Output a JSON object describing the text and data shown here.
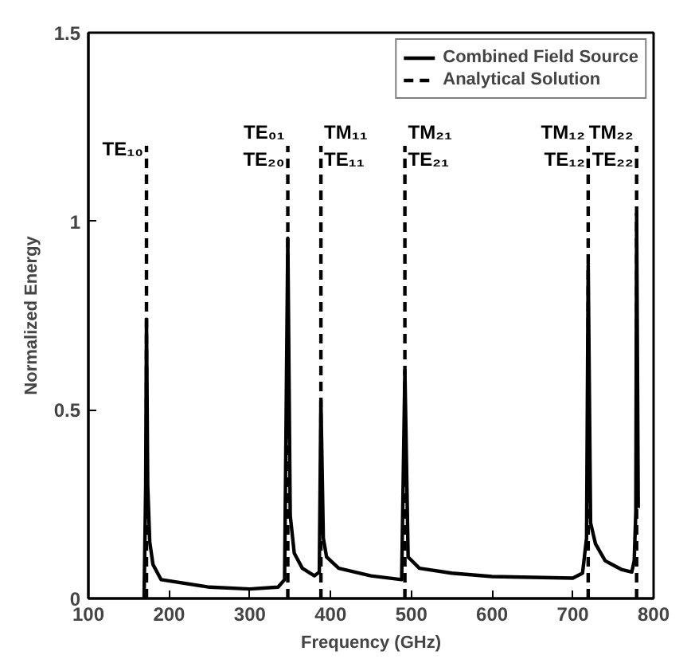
{
  "chart_data": {
    "type": "line",
    "xlabel": "Frequency (GHz)",
    "ylabel": "Normalized Energy",
    "xlim": [
      100,
      800
    ],
    "xticks": [
      100,
      200,
      300,
      400,
      500,
      600,
      700,
      800
    ],
    "ylim": [
      0,
      1.5
    ],
    "yticks": [
      0,
      0.5,
      1,
      1.5
    ],
    "grid": false,
    "legend": "top right",
    "series": [
      {
        "name": "Combined Field Source",
        "color": "#000000",
        "line_style": "solid",
        "x": [
          169,
          171,
          172,
          173.5,
          176,
          180,
          190,
          250,
          300,
          335,
          343,
          347,
          350,
          355,
          365,
          380,
          386,
          388,
          391,
          395,
          410,
          450,
          488,
          492,
          496,
          510,
          550,
          600,
          700,
          712,
          717,
          719,
          722,
          728,
          740,
          760,
          773,
          776,
          778,
          779,
          781
        ],
        "values": [
          0,
          0.3,
          0.74,
          0.3,
          0.15,
          0.09,
          0.05,
          0.03,
          0.025,
          0.03,
          0.05,
          0.955,
          0.22,
          0.12,
          0.08,
          0.06,
          0.07,
          0.525,
          0.16,
          0.11,
          0.08,
          0.06,
          0.05,
          0.605,
          0.11,
          0.08,
          0.067,
          0.058,
          0.054,
          0.067,
          0.16,
          0.885,
          0.2,
          0.145,
          0.1,
          0.077,
          0.07,
          0.1,
          0.23,
          1.02,
          0.24
        ]
      },
      {
        "name": "Analytical Solution",
        "color": "#000000",
        "line_style": "dashed",
        "x": [
          172,
          172
        ],
        "values": [
          0,
          1.2
        ]
      },
      {
        "color": "#000000",
        "line_style": "dashed",
        "x": [
          347,
          347
        ],
        "values": [
          0,
          1.2
        ]
      },
      {
        "color": "#000000",
        "line_style": "dashed",
        "x": [
          388,
          388
        ],
        "values": [
          0,
          1.2
        ]
      },
      {
        "color": "#000000",
        "line_style": "dashed",
        "x": [
          492,
          492
        ],
        "values": [
          0,
          1.2
        ]
      },
      {
        "color": "#000000",
        "line_style": "dashed",
        "x": [
          719,
          719
        ],
        "values": [
          0,
          1.2
        ]
      },
      {
        "color": "#000000",
        "line_style": "dashed",
        "x": [
          779,
          779
        ],
        "values": [
          0,
          1.2
        ]
      }
    ],
    "annotations": [
      {
        "text": "TE₁₀",
        "x": 172,
        "y": 1.2
      },
      {
        "text": "TE₀₁",
        "x": 347,
        "y": 1.2
      },
      {
        "text": "TE₂₀",
        "x": 347,
        "y": 1.2
      },
      {
        "text": "TM₁₁",
        "x": 388,
        "y": 1.2
      },
      {
        "text": "TE₁₁",
        "x": 388,
        "y": 1.2
      },
      {
        "text": "TM₂₁",
        "x": 492,
        "y": 1.2
      },
      {
        "text": "TE₂₁",
        "x": 492,
        "y": 1.2
      },
      {
        "text": "TM₁₂",
        "x": 719,
        "y": 1.2
      },
      {
        "text": "TE₁₂",
        "x": 719,
        "y": 1.2
      },
      {
        "text": "TM₂₂",
        "x": 779,
        "y": 1.2
      },
      {
        "text": "TE₂₂",
        "x": 779,
        "y": 1.2
      }
    ]
  }
}
